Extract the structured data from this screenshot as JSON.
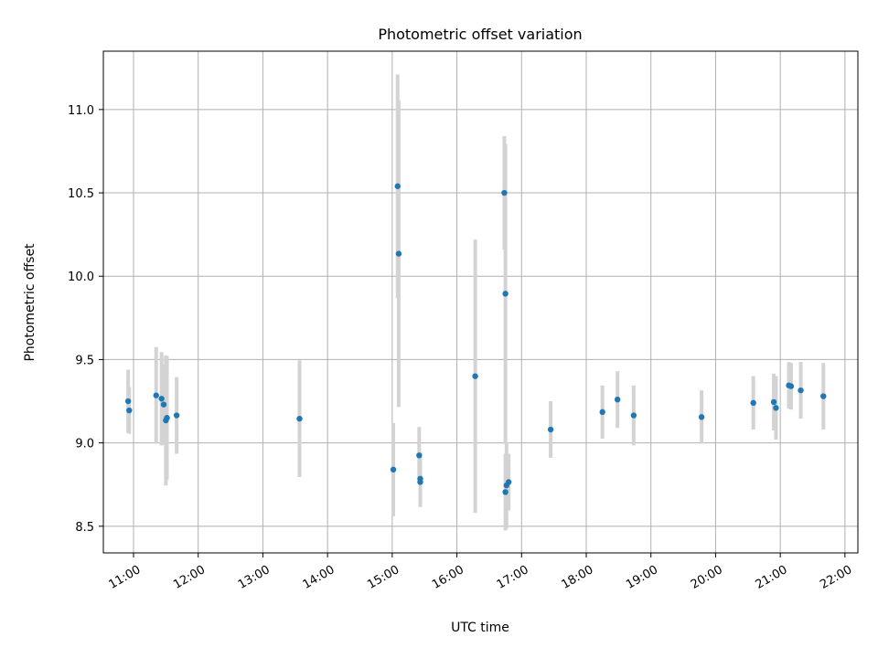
{
  "chart_data": {
    "type": "scatter",
    "title": "Photometric offset variation",
    "xlabel": "UTC time",
    "ylabel": "Photometric offset",
    "grid": true,
    "xlim": [
      "10:32",
      "22:12"
    ],
    "ylim": [
      8.34,
      11.35
    ],
    "xticks": [
      "11:00",
      "12:00",
      "13:00",
      "14:00",
      "15:00",
      "16:00",
      "17:00",
      "18:00",
      "19:00",
      "20:00",
      "21:00",
      "22:00"
    ],
    "yticks": [
      "8.5",
      "9.0",
      "9.5",
      "10.0",
      "10.5",
      "11.0"
    ],
    "colors": {
      "point": "#1f77b4",
      "errorbar": "#d3d3d3",
      "grid": "#b0b0b0"
    },
    "series": [
      {
        "points": [
          {
            "x": "10:55",
            "y": 9.25,
            "err": 0.19
          },
          {
            "x": "10:56",
            "y": 9.195,
            "err": 0.14
          },
          {
            "x": "11:21",
            "y": 9.285,
            "err": 0.29
          },
          {
            "x": "11:26",
            "y": 9.265,
            "err": 0.28
          },
          {
            "x": "11:28",
            "y": 9.23,
            "err": 0.24
          },
          {
            "x": "11:30",
            "y": 9.135,
            "err": 0.39
          },
          {
            "x": "11:31",
            "y": 9.15,
            "err": 0.37
          },
          {
            "x": "11:40",
            "y": 9.165,
            "err": 0.23
          },
          {
            "x": "13:34",
            "y": 9.145,
            "err": 0.35
          },
          {
            "x": "15:01",
            "y": 8.84,
            "err": 0.28
          },
          {
            "x": "15:05",
            "y": 10.54,
            "err": 0.67
          },
          {
            "x": "15:06",
            "y": 10.135,
            "err": 0.92
          },
          {
            "x": "15:25",
            "y": 8.925,
            "err": 0.17
          },
          {
            "x": "15:26",
            "y": 8.785,
            "err": 0.16
          },
          {
            "x": "15:26",
            "y": 8.765,
            "err": 0.15
          },
          {
            "x": "16:17",
            "y": 9.4,
            "err": 0.82
          },
          {
            "x": "16:44",
            "y": 10.5,
            "err": 0.34
          },
          {
            "x": "16:45",
            "y": 9.895,
            "err": 0.9
          },
          {
            "x": "16:45",
            "y": 8.705,
            "err": 0.23
          },
          {
            "x": "16:46",
            "y": 8.745,
            "err": 0.26
          },
          {
            "x": "16:48",
            "y": 8.765,
            "err": 0.17
          },
          {
            "x": "17:27",
            "y": 9.08,
            "err": 0.17
          },
          {
            "x": "18:15",
            "y": 9.185,
            "err": 0.16
          },
          {
            "x": "18:29",
            "y": 9.26,
            "err": 0.17
          },
          {
            "x": "18:44",
            "y": 9.165,
            "err": 0.18
          },
          {
            "x": "19:47",
            "y": 9.155,
            "err": 0.16
          },
          {
            "x": "20:35",
            "y": 9.24,
            "err": 0.16
          },
          {
            "x": "20:54",
            "y": 9.245,
            "err": 0.17
          },
          {
            "x": "20:56",
            "y": 9.21,
            "err": 0.19
          },
          {
            "x": "21:08",
            "y": 9.345,
            "err": 0.14
          },
          {
            "x": "21:10",
            "y": 9.34,
            "err": 0.14
          },
          {
            "x": "21:19",
            "y": 9.315,
            "err": 0.17
          },
          {
            "x": "21:40",
            "y": 9.28,
            "err": 0.2
          }
        ]
      }
    ]
  }
}
